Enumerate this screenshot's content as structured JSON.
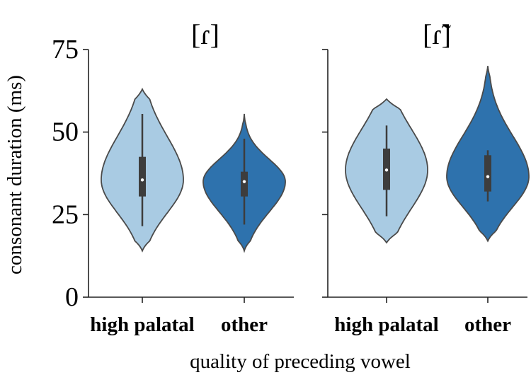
{
  "chart_data": {
    "type": "violin",
    "ylabel": "consonant duration (ms)",
    "xlabel": "quality of preceding vowel",
    "ylim": [
      0,
      75
    ],
    "yticks": [
      0,
      25,
      50,
      75
    ],
    "categories": [
      "high palatal",
      "other"
    ],
    "colors": {
      "high palatal": "#a9cbe3",
      "other": "#2e72ad"
    },
    "panels": [
      {
        "title": "[ɾ]",
        "violins": [
          {
            "category": "high palatal",
            "min": 14,
            "max": 63,
            "whisker_low": 21.5,
            "q1": 30.5,
            "median": 35.5,
            "q3": 42.5,
            "whisker_high": 55.5
          },
          {
            "category": "other",
            "min": 14,
            "max": 55.5,
            "whisker_low": 22,
            "q1": 30.5,
            "median": 35,
            "q3": 38,
            "whisker_high": 48
          }
        ]
      },
      {
        "title": "[ɾ̃]",
        "violins": [
          {
            "category": "high palatal",
            "min": 16.5,
            "max": 60,
            "whisker_low": 24.5,
            "q1": 32.5,
            "median": 38.5,
            "q3": 45,
            "whisker_high": 52
          },
          {
            "category": "other",
            "min": 17,
            "max": 70,
            "whisker_low": 29,
            "q1": 32,
            "median": 36.5,
            "q3": 43,
            "whisker_high": 44.5
          }
        ]
      }
    ]
  }
}
